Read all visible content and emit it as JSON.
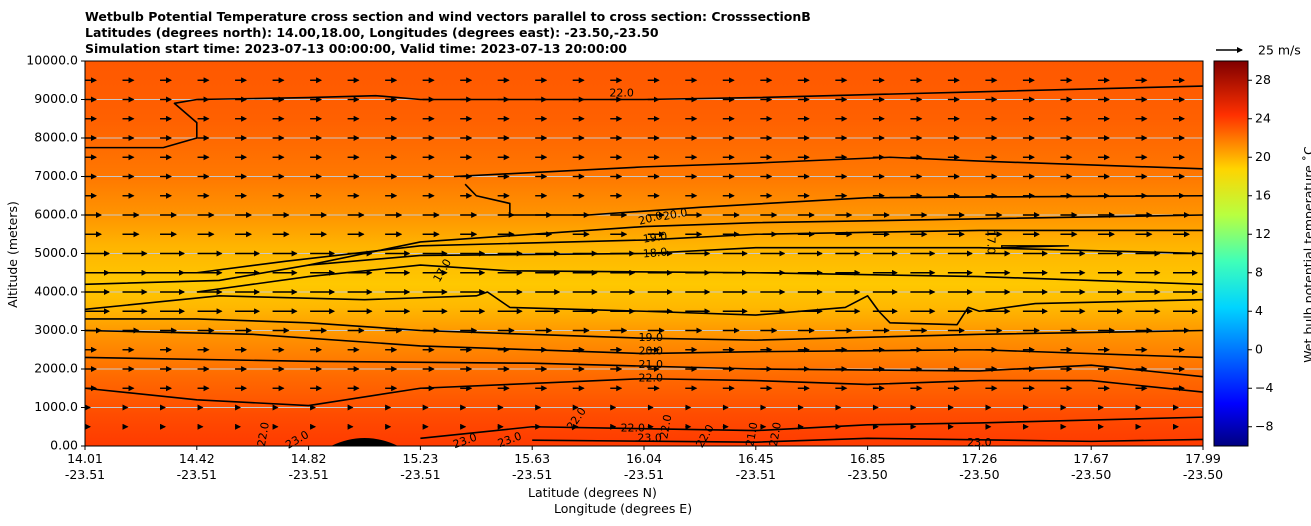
{
  "chart_data": {
    "type": "heatmap",
    "title_lines": [
      "Wetbulb Potential Temperature cross section and wind vectors parallel to cross section: CrosssectionB",
      "Latitudes (degrees north): 14.00,18.00, Longitudes (degrees east): -23.50,-23.50",
      "Simulation start time: 2023-07-13 00:00:00, Valid time: 2023-07-13 20:00:00"
    ],
    "xlabel": "Latitude (degrees N)",
    "xlabel2": "Longitude (degrees E)",
    "ylabel": "Altitude (meters)",
    "ylim": [
      0,
      10000
    ],
    "y_ticks": [
      "0.00",
      "1000.0",
      "2000.0",
      "3000.0",
      "4000.0",
      "5000.0",
      "6000.0",
      "7000.0",
      "8000.0",
      "9000.0",
      "10000.0"
    ],
    "y_tick_values": [
      0,
      1000,
      2000,
      3000,
      4000,
      5000,
      6000,
      7000,
      8000,
      9000,
      10000
    ],
    "x_ticks": [
      {
        "lat": "14.01",
        "lon": "-23.51"
      },
      {
        "lat": "14.42",
        "lon": "-23.51"
      },
      {
        "lat": "14.82",
        "lon": "-23.51"
      },
      {
        "lat": "15.23",
        "lon": "-23.51"
      },
      {
        "lat": "15.63",
        "lon": "-23.51"
      },
      {
        "lat": "16.04",
        "lon": "-23.51"
      },
      {
        "lat": "16.45",
        "lon": "-23.51"
      },
      {
        "lat": "16.85",
        "lon": "-23.50"
      },
      {
        "lat": "17.26",
        "lon": "-23.50"
      },
      {
        "lat": "17.67",
        "lon": "-23.50"
      },
      {
        "lat": "17.99",
        "lon": "-23.50"
      }
    ],
    "colorbar": {
      "label": "Wet bulb potential temperature ˚C",
      "range": [
        -10,
        30
      ],
      "ticks": [
        "−8",
        "−4",
        "0",
        "4",
        "8",
        "12",
        "16",
        "20",
        "24",
        "28"
      ],
      "tick_values": [
        -8,
        -4,
        0,
        4,
        8,
        12,
        16,
        20,
        24,
        28
      ]
    },
    "quiver_key": {
      "label": "25 m/s"
    },
    "contour_labels": [
      {
        "text": "22.0",
        "x": 0.48,
        "alt": 9150,
        "rot": 0
      },
      {
        "text": "20.0",
        "x": 0.506,
        "alt": 5900,
        "rot": -15
      },
      {
        "text": "20.0",
        "x": 0.528,
        "alt": 6000,
        "rot": -10
      },
      {
        "text": "19.0",
        "x": 0.51,
        "alt": 5400,
        "rot": -8
      },
      {
        "text": "18.0",
        "x": 0.51,
        "alt": 5000,
        "rot": -5
      },
      {
        "text": "17.0",
        "x": 0.32,
        "alt": 4550,
        "rot": -60
      },
      {
        "text": "17.0",
        "x": 0.81,
        "alt": 5300,
        "rot": 90
      },
      {
        "text": "19.0",
        "x": 0.506,
        "alt": 2800,
        "rot": 0
      },
      {
        "text": "20.0",
        "x": 0.506,
        "alt": 2450,
        "rot": 0
      },
      {
        "text": "21.0",
        "x": 0.506,
        "alt": 2100,
        "rot": 0
      },
      {
        "text": "22.0",
        "x": 0.506,
        "alt": 1750,
        "rot": 0
      },
      {
        "text": "22.0",
        "x": 0.44,
        "alt": 700,
        "rot": -55
      },
      {
        "text": "22.0",
        "x": 0.49,
        "alt": 450,
        "rot": 0
      },
      {
        "text": "23.0",
        "x": 0.505,
        "alt": 200,
        "rot": 0
      },
      {
        "text": "22.0",
        "x": 0.52,
        "alt": 500,
        "rot": -80
      },
      {
        "text": "22.0",
        "x": 0.555,
        "alt": 250,
        "rot": -60
      },
      {
        "text": "21.0",
        "x": 0.597,
        "alt": 300,
        "rot": -80
      },
      {
        "text": "22.0",
        "x": 0.618,
        "alt": 300,
        "rot": -80
      },
      {
        "text": "22.0",
        "x": 0.16,
        "alt": 300,
        "rot": -80
      },
      {
        "text": "23.0",
        "x": 0.19,
        "alt": 150,
        "rot": -30
      },
      {
        "text": "23.0",
        "x": 0.34,
        "alt": 120,
        "rot": -20
      },
      {
        "text": "23.0",
        "x": 0.38,
        "alt": 150,
        "rot": -20
      },
      {
        "text": "23.0",
        "x": 0.8,
        "alt": 80,
        "rot": 0
      }
    ],
    "contours": [
      {
        "level": "22.0",
        "points": [
          [
            0,
            7750
          ],
          [
            0.07,
            7750
          ],
          [
            0.1,
            8000
          ],
          [
            0.1,
            8400
          ],
          [
            0.08,
            8900
          ],
          [
            0.1,
            9000
          ],
          [
            0.2,
            9050
          ],
          [
            0.26,
            9100
          ],
          [
            0.3,
            9000
          ],
          [
            0.5,
            9000
          ],
          [
            0.6,
            9050
          ],
          [
            0.8,
            9200
          ],
          [
            1,
            9350
          ]
        ]
      },
      {
        "level": "21.0",
        "points": [
          [
            0.33,
            7000
          ],
          [
            0.5,
            7250
          ],
          [
            0.6,
            7350
          ],
          [
            0.72,
            7500
          ],
          [
            0.8,
            7400
          ],
          [
            1,
            7200
          ]
        ]
      },
      {
        "level": "20.0",
        "points": [
          [
            0.34,
            6800
          ],
          [
            0.35,
            6500
          ],
          [
            0.38,
            6300
          ],
          [
            0.38,
            6000
          ],
          [
            0.45,
            6000
          ],
          [
            0.55,
            6200
          ],
          [
            0.7,
            6450
          ],
          [
            1,
            6500
          ]
        ]
      },
      {
        "level": "20.0b",
        "points": [
          [
            0.2,
            4700
          ],
          [
            0.3,
            5300
          ],
          [
            0.5,
            5700
          ],
          [
            0.6,
            5800
          ],
          [
            0.8,
            5900
          ],
          [
            1,
            6000
          ]
        ]
      },
      {
        "level": "19.0",
        "points": [
          [
            0,
            4500
          ],
          [
            0.1,
            4500
          ],
          [
            0.18,
            4800
          ],
          [
            0.3,
            5200
          ],
          [
            0.5,
            5350
          ],
          [
            0.6,
            5500
          ],
          [
            0.8,
            5600
          ],
          [
            1,
            5600
          ]
        ]
      },
      {
        "level": "18.0",
        "points": [
          [
            0,
            4200
          ],
          [
            0.12,
            4300
          ],
          [
            0.2,
            4700
          ],
          [
            0.3,
            4950
          ],
          [
            0.5,
            5000
          ],
          [
            0.6,
            5150
          ],
          [
            0.8,
            5150
          ],
          [
            1,
            5000
          ]
        ]
      },
      {
        "level": "17.0",
        "points": [
          [
            0.1,
            4000
          ],
          [
            0.2,
            4400
          ],
          [
            0.3,
            4700
          ],
          [
            0.38,
            4550
          ],
          [
            0.6,
            4500
          ],
          [
            0.8,
            4400
          ],
          [
            1,
            4200
          ]
        ]
      },
      {
        "level": "17.0b",
        "points": [
          [
            0,
            3550
          ],
          [
            0.12,
            3900
          ],
          [
            0.25,
            3800
          ],
          [
            0.35,
            3900
          ],
          [
            0.36,
            4000
          ],
          [
            0.38,
            3600
          ],
          [
            0.5,
            3500
          ],
          [
            0.6,
            3400
          ],
          [
            0.68,
            3600
          ],
          [
            0.7,
            3900
          ],
          [
            0.71,
            3500
          ],
          [
            0.72,
            3200
          ],
          [
            0.78,
            3150
          ],
          [
            0.79,
            3600
          ],
          [
            0.8,
            3500
          ],
          [
            0.85,
            3700
          ],
          [
            1,
            3800
          ]
        ]
      },
      {
        "level": "19.0",
        "points": [
          [
            0,
            3300
          ],
          [
            0.1,
            3300
          ],
          [
            0.2,
            3200
          ],
          [
            0.3,
            3000
          ],
          [
            0.5,
            2800
          ],
          [
            0.6,
            2750
          ],
          [
            0.8,
            2900
          ],
          [
            1,
            3000
          ]
        ]
      },
      {
        "level": "20.0",
        "points": [
          [
            0,
            3000
          ],
          [
            0.15,
            2900
          ],
          [
            0.3,
            2600
          ],
          [
            0.5,
            2400
          ],
          [
            0.6,
            2450
          ],
          [
            0.8,
            2500
          ],
          [
            1,
            2300
          ]
        ]
      },
      {
        "level": "21.0",
        "points": [
          [
            0,
            2300
          ],
          [
            0.2,
            2200
          ],
          [
            0.4,
            2150
          ],
          [
            0.6,
            2000
          ],
          [
            0.8,
            1950
          ],
          [
            0.9,
            2100
          ],
          [
            1,
            1800
          ]
        ]
      },
      {
        "level": "22.0",
        "points": [
          [
            0,
            1500
          ],
          [
            0.1,
            1200
          ],
          [
            0.2,
            1050
          ],
          [
            0.3,
            1500
          ],
          [
            0.5,
            1750
          ],
          [
            0.6,
            1700
          ],
          [
            0.7,
            1600
          ],
          [
            0.8,
            1700
          ],
          [
            0.9,
            1700
          ],
          [
            1,
            1400
          ]
        ]
      },
      {
        "level": "22.0c",
        "points": [
          [
            0.3,
            200
          ],
          [
            0.4,
            500
          ],
          [
            0.5,
            450
          ],
          [
            0.6,
            400
          ],
          [
            0.7,
            550
          ],
          [
            0.8,
            600
          ],
          [
            1,
            750
          ]
        ]
      },
      {
        "level": "23.0",
        "points": [
          [
            0.4,
            150
          ],
          [
            0.6,
            100
          ],
          [
            0.7,
            200
          ],
          [
            0.9,
            120
          ],
          [
            1,
            170
          ]
        ]
      }
    ]
  }
}
